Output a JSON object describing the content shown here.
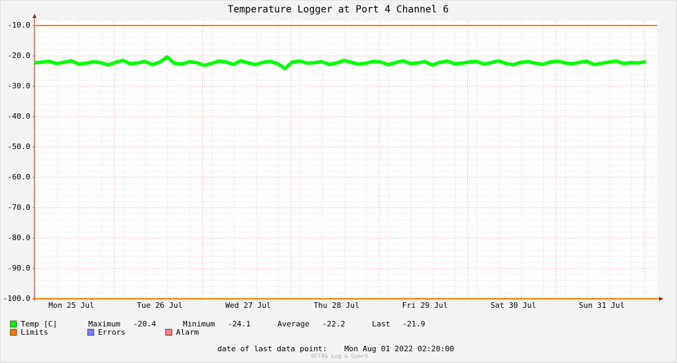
{
  "chart_data": {
    "type": "line",
    "title": "Temperature Logger at Port 4 Channel 6",
    "categories": [
      null,
      null,
      null,
      null,
      null,
      "Mon 25 Jul",
      null,
      null,
      null,
      null,
      null,
      null,
      null,
      null,
      null,
      null,
      null,
      "Tue 26 Jul",
      null,
      null,
      null,
      null,
      null,
      null,
      null,
      null,
      null,
      null,
      null,
      "Wed 27 Jul",
      null,
      null,
      null,
      null,
      null,
      null,
      null,
      null,
      null,
      null,
      null,
      "Thu 28 Jul",
      null,
      null,
      null,
      null,
      null,
      null,
      null,
      null,
      null,
      null,
      null,
      "Fri 29 Jul",
      null,
      null,
      null,
      null,
      null,
      null,
      null,
      null,
      null,
      null,
      null,
      "Sat 30 Jul",
      null,
      null,
      null,
      null,
      null,
      null,
      null,
      null,
      null,
      null,
      null,
      "Sun 31 Jul",
      null,
      null,
      null,
      null,
      null,
      null
    ],
    "series": [
      {
        "name": "Temp [C]",
        "color": "#00ff00",
        "values": [
          -22.3,
          -22.0,
          -21.8,
          -22.5,
          -22.1,
          -21.6,
          -22.7,
          -22.4,
          -21.9,
          -22.2,
          -23.0,
          -22.1,
          -21.5,
          -22.6,
          -22.3,
          -21.8,
          -22.9,
          -22.0,
          -20.4,
          -22.4,
          -22.7,
          -21.9,
          -22.2,
          -23.1,
          -22.5,
          -21.7,
          -22.0,
          -22.8,
          -21.6,
          -22.3,
          -22.9,
          -22.1,
          -21.8,
          -22.6,
          -24.1,
          -22.0,
          -21.7,
          -22.4,
          -22.2,
          -21.9,
          -22.8,
          -22.3,
          -21.5,
          -22.1,
          -22.7,
          -22.4,
          -21.8,
          -22.0,
          -22.9,
          -22.2,
          -21.6,
          -22.5,
          -22.3,
          -21.9,
          -23.0,
          -22.1,
          -21.7,
          -22.6,
          -22.4,
          -22.0,
          -21.8,
          -22.7,
          -22.2,
          -21.6,
          -22.5,
          -22.9,
          -22.1,
          -21.9,
          -22.4,
          -22.8,
          -22.0,
          -21.7,
          -22.3,
          -22.6,
          -22.1,
          -21.8,
          -22.9,
          -22.4,
          -22.0,
          -21.7,
          -22.5,
          -22.2,
          -22.3,
          -21.9
        ]
      }
    ],
    "limits": {
      "name": "Limits",
      "color": "#ff7f00",
      "values": [
        -10,
        -100
      ]
    },
    "legend_extra": [
      {
        "name": "Errors",
        "color": "#7f7fff"
      },
      {
        "name": "Alarm",
        "color": "#ff7f7f"
      }
    ],
    "stats": [
      {
        "label": "Maximum",
        "value": -20.4
      },
      {
        "label": "Minimum",
        "value": -24.1
      },
      {
        "label": "Average",
        "value": -22.2
      },
      {
        "label": "Last",
        "value": -21.9
      }
    ],
    "ylim": [
      -100,
      -8.4
    ],
    "yticks": [
      {
        "value": -100,
        "label": "-100.0"
      },
      {
        "value": -90,
        "label": "-90.0"
      },
      {
        "value": -80,
        "label": "-80.0"
      },
      {
        "value": -70,
        "label": "-70.0"
      },
      {
        "value": -60,
        "label": "-60.0"
      },
      {
        "value": -50,
        "label": "-50.0"
      },
      {
        "value": -40,
        "label": "-40.0"
      },
      {
        "value": -30,
        "label": "-30.0"
      },
      {
        "value": -20,
        "label": "-20.0"
      },
      {
        "value": -10,
        "label": "-10.0"
      }
    ],
    "grid": true,
    "footer_label": "date of last data point:",
    "footer_date": "Mon Aug 01 2022 02:20:00",
    "watermark": "OCTA& Log & Guard"
  }
}
